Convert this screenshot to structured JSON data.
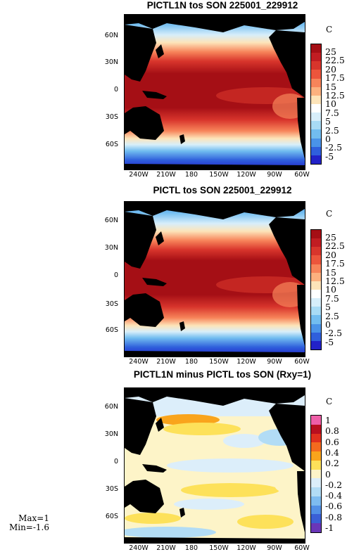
{
  "panels": [
    {
      "title": "PICTL1N tos SON 225001_229912",
      "unit": "C",
      "colorbar_labels": [
        "25",
        "22.5",
        "20",
        "17.5",
        "15",
        "12.5",
        "10",
        "7.5",
        "5",
        "2.5",
        "0",
        "-2.5",
        "-5"
      ],
      "colorbar_colors": [
        "#a50f15",
        "#c11d22",
        "#d8352c",
        "#ec553c",
        "#f7845a",
        "#fcb17f",
        "#fde4b9",
        "#ffffff",
        "#d7eefa",
        "#a8dbf5",
        "#72bdf0",
        "#4a93e8",
        "#2f5fdc",
        "#2222c8"
      ],
      "map_type": "temperature"
    },
    {
      "title": "PICTL tos SON 225001_229912",
      "unit": "C",
      "colorbar_labels": [
        "25",
        "22.5",
        "20",
        "17.5",
        "15",
        "12.5",
        "10",
        "7.5",
        "5",
        "2.5",
        "0",
        "-2.5",
        "-5"
      ],
      "colorbar_colors": [
        "#a50f15",
        "#c11d22",
        "#d8352c",
        "#ec553c",
        "#f7845a",
        "#fcb17f",
        "#fde4b9",
        "#ffffff",
        "#d7eefa",
        "#a8dbf5",
        "#72bdf0",
        "#4a93e8",
        "#2f5fdc",
        "#2222c8"
      ],
      "map_type": "temperature"
    },
    {
      "title": "PICTL1N minus PICTL tos SON (Rxy=1)",
      "unit": "C",
      "colorbar_labels": [
        "1",
        "0.8",
        "0.6",
        "0.4",
        "0.2",
        "0",
        "-0.2",
        "-0.4",
        "-0.6",
        "-0.8",
        "-1"
      ],
      "colorbar_colors": [
        "#ee5fa8",
        "#b80f1f",
        "#e0301e",
        "#f46a1e",
        "#f9a41c",
        "#fde15a",
        "#fdf4c8",
        "#dceefa",
        "#b2dcf5",
        "#7ebcf0",
        "#5290e6",
        "#3a5fd6",
        "#6a36b8"
      ],
      "map_type": "difference"
    }
  ],
  "lat_labels": [
    "60N",
    "30N",
    "0",
    "30S",
    "60S"
  ],
  "lon_labels": [
    "240W",
    "210W",
    "180",
    "150W",
    "120W",
    "90W",
    "60W"
  ],
  "stats": {
    "max": "Max=1",
    "min": "Min=-1.6"
  }
}
